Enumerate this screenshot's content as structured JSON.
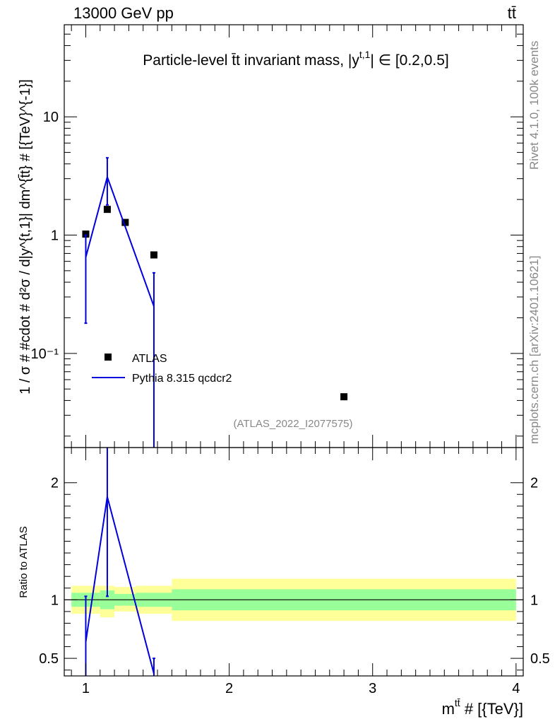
{
  "header": {
    "left": "13000 GeV pp",
    "right": "tt̄"
  },
  "side_text": {
    "rivet": "Rivet 4.1.0,  100k events",
    "mcplots": "mcplots.cern.ch [arXiv:2401.10621]"
  },
  "colors": {
    "data": "#000000",
    "mc": "#0000dd",
    "band_inner": "#99ff99",
    "band_outer": "#ffff99",
    "refline": "#000000"
  },
  "chart_data": [
    {
      "type": "scatter",
      "title": "Particle-level t̄t invariant mass, |y^{t,1}| ∈ [0.2,0.5]",
      "title_parts": {
        "main": "Particle-level t̄t invariant mass, |y",
        "sup": "t,1",
        "tail": "| ∈ [0.2,0.5]"
      },
      "ylabel": "1 / σ # #cdot # d²σ / d|y^{t,1}| dm^{t̄t} # [{TeV}^{-1}]",
      "yscale": "log",
      "xlim": [
        0.85,
        4.05
      ],
      "ylim": [
        0.016,
        60
      ],
      "yticks": [
        {
          "value": 0.1,
          "label": "10⁻¹"
        },
        {
          "value": 1,
          "label": "1"
        },
        {
          "value": 10,
          "label": "10"
        }
      ],
      "watermark": "(ATLAS_2022_I2077575)",
      "legend": [
        "ATLAS",
        "Pythia 8.315 qcdcr2"
      ],
      "legend_position": "left, lower",
      "series": [
        {
          "name": "ATLAS",
          "style": "markers",
          "x": [
            1.0,
            1.15,
            1.275,
            1.475,
            2.8
          ],
          "y": [
            1.02,
            1.65,
            1.28,
            0.68,
            0.043
          ]
        },
        {
          "name": "Pythia 8.315 qcdcr2",
          "style": "line",
          "x": [
            1.0,
            1.15,
            1.475
          ],
          "y": [
            0.65,
            3.1,
            0.25
          ],
          "err_hi": [
            1.0,
            4.5,
            0.48
          ],
          "err_lo": [
            0.18,
            1.8,
            0.005
          ]
        }
      ]
    },
    {
      "type": "line",
      "ylabel": "Ratio to ATLAS",
      "xlabel": "m^{t̄t} # [{TeV}]",
      "xlabel_parts": {
        "main": "m",
        "sup": "tt̄",
        "tail": " # [{TeV}]"
      },
      "xlim": [
        0.85,
        4.05
      ],
      "ylim": [
        0.35,
        2.3
      ],
      "xticks": [
        1,
        2,
        3,
        4
      ],
      "yticks": [
        0.5,
        1,
        2
      ],
      "reference_line": 1.0,
      "bands": {
        "edges": [
          0.9,
          1.1,
          1.2,
          1.35,
          1.6,
          4.0
        ],
        "inner_lo": [
          0.94,
          0.92,
          0.95,
          0.94,
          0.91
        ],
        "inner_hi": [
          1.06,
          1.08,
          1.05,
          1.06,
          1.09
        ],
        "outer_lo": [
          0.88,
          0.85,
          0.9,
          0.88,
          0.82
        ],
        "outer_hi": [
          1.12,
          1.12,
          1.11,
          1.12,
          1.18
        ]
      },
      "series": [
        {
          "name": "Pythia 8.315 qcdcr2",
          "x": [
            1.0,
            1.15,
            1.475
          ],
          "y": [
            0.64,
            1.88,
            0.37
          ],
          "err_hi": [
            1.03,
            2.3,
            0.5
          ],
          "err_lo": [
            0.35,
            1.03,
            0.35
          ]
        }
      ]
    }
  ]
}
